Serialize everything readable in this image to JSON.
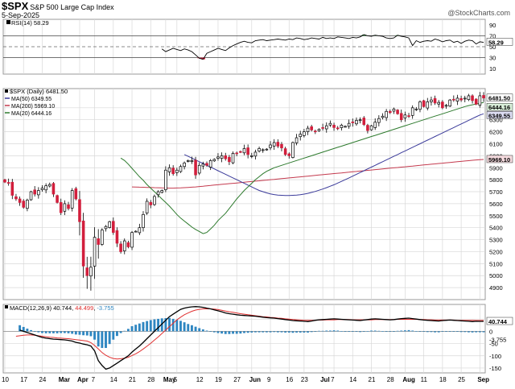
{
  "header": {
    "symbol": "$SPX",
    "name": "S&P 500 Large Cap Index",
    "date": "5-Sep-2025",
    "copyright": "@StockCharts.com"
  },
  "colors": {
    "up": "#ffffff",
    "down": "#d21e3c",
    "wick": "#000000",
    "ma50": "#3a3a9a",
    "ma200": "#c43a4e",
    "ma20": "#2d7a2d",
    "rsi_line": "#000000",
    "rsi_over": "#2e8b3a",
    "rsi_under": "#d21e3c",
    "macd_line": "#000000",
    "signal_line": "#e03030",
    "hist": "#2e86c1",
    "grid": "#d8d8d8"
  },
  "chart_data": [
    {
      "type": "line",
      "name": "rsi_panel",
      "legend": "RSI(14) 58.29",
      "current_value": "58.29",
      "ylim": [
        0,
        100
      ],
      "yticks": [
        10,
        30,
        50,
        70,
        90
      ],
      "levels": [
        30,
        50,
        70
      ],
      "values": [
        46,
        41,
        44,
        47,
        45,
        43,
        46,
        44,
        41,
        35,
        29,
        27,
        38,
        41,
        44,
        47,
        45,
        43,
        48,
        52,
        55,
        58,
        60,
        58,
        57,
        61,
        62,
        63,
        61,
        62,
        63,
        64,
        63,
        62,
        64,
        63,
        66,
        65,
        63,
        64,
        66,
        65,
        64,
        67,
        65,
        66,
        65,
        68,
        67,
        66,
        65,
        67,
        66,
        68,
        72,
        70,
        69,
        71,
        70,
        69,
        66,
        65,
        66,
        71,
        69,
        68,
        66,
        52,
        61,
        58,
        60,
        61,
        60,
        64,
        62,
        59,
        61,
        62,
        58,
        60,
        56,
        60,
        62,
        61,
        55,
        59,
        58
      ]
    },
    {
      "type": "candlestick",
      "name": "price_panel",
      "title_legend": "$SPX (Daily) 6481.50",
      "legend": [
        {
          "label": "MA(50) 6349.55",
          "key": "ma50"
        },
        {
          "label": "MA(200) 5969.10",
          "key": "ma200"
        },
        {
          "label": "MA(20) 6444.16",
          "key": "ma20"
        }
      ],
      "last_labels": {
        "price": "6481.50",
        "ma20": "6444.16",
        "ma50": "6349.55",
        "ma200": "5969.10"
      },
      "ylim": [
        4800,
        6560
      ],
      "yticks": [
        4900,
        5000,
        5100,
        5200,
        5300,
        5400,
        5500,
        5600,
        5700,
        5800,
        5900,
        6000,
        6100,
        6200,
        6300,
        6400
      ],
      "x_labels": [
        {
          "i": 0,
          "text": "10"
        },
        {
          "i": 5,
          "text": "17"
        },
        {
          "i": 10,
          "text": "24"
        },
        {
          "i": 15,
          "text": "Mar"
        },
        {
          "i": 20,
          "text": "Apr"
        },
        {
          "i": 24,
          "text": "7"
        },
        {
          "i": 29,
          "text": "14"
        },
        {
          "i": 34,
          "text": "21"
        },
        {
          "i": 39,
          "text": "28"
        },
        {
          "i": 43,
          "text": "May"
        },
        {
          "i": 46,
          "text": "5"
        },
        {
          "i": 52,
          "text": "12"
        },
        {
          "i": 57,
          "text": "19"
        },
        {
          "i": 62,
          "text": "27"
        },
        {
          "i": 66,
          "text": "Jun"
        },
        {
          "i": 71,
          "text": "9"
        },
        {
          "i": 76,
          "text": "16"
        },
        {
          "i": 80,
          "text": "23"
        },
        {
          "i": 85,
          "text": "Jul"
        },
        {
          "i": 88,
          "text": "7"
        },
        {
          "i": 93,
          "text": "14"
        },
        {
          "i": 98,
          "text": "21"
        },
        {
          "i": 103,
          "text": "28"
        },
        {
          "i": 107,
          "text": "Aug"
        },
        {
          "i": 112,
          "text": "11"
        },
        {
          "i": 117,
          "text": "18"
        },
        {
          "i": 122,
          "text": "25"
        },
        {
          "i": 127,
          "text": "Sep"
        }
      ],
      "closes": [
        5780,
        5770,
        5670,
        5640,
        5610,
        5570,
        5630,
        5700,
        5680,
        5710,
        5730,
        5750,
        5760,
        5680,
        5610,
        5525,
        5600,
        5560,
        5710,
        5640,
        5450,
        5080,
        5000,
        5070,
        5320,
        5260,
        5380,
        5410,
        5450,
        5360,
        5270,
        5200,
        5290,
        5240,
        5360,
        5370,
        5400,
        5510,
        5620,
        5590,
        5660,
        5700,
        5710,
        5880,
        5900,
        5850,
        5880,
        5910,
        5940,
        5960,
        5960,
        5840,
        5920,
        5930,
        5920,
        5960,
        5970,
        5990,
        6000,
        5975,
        5950,
        6020,
        6020,
        6030,
        6060,
        6010,
        6000,
        6030,
        6060,
        6050,
        6055,
        6090,
        6110,
        6080,
        6065,
        6010,
        6000,
        6110,
        6150,
        6180,
        6200,
        6230,
        6215,
        6205,
        6220,
        6230,
        6250,
        6270,
        6235,
        6225,
        6255,
        6245,
        6270,
        6275,
        6295,
        6300,
        6260,
        6210,
        6250,
        6280,
        6310,
        6330,
        6370,
        6360,
        6390,
        6350,
        6300,
        6340,
        6330,
        6400,
        6390,
        6450,
        6410,
        6450,
        6465,
        6440,
        6445,
        6400,
        6420,
        6465,
        6470,
        6480,
        6465,
        6480,
        6500,
        6460,
        6430,
        6500,
        6481.5
      ],
      "ma20": [
        5980,
        5960,
        5930,
        5895,
        5860,
        5825,
        5795,
        5760,
        5730,
        5700,
        5670,
        5640,
        5610,
        5580,
        5545,
        5510,
        5480,
        5455,
        5430,
        5405,
        5385,
        5368,
        5350,
        5360,
        5390,
        5420,
        5460,
        5490,
        5520,
        5560,
        5600,
        5640,
        5675,
        5710,
        5740,
        5770,
        5800,
        5825,
        5850,
        5870,
        5885,
        5900,
        5910,
        5920,
        5930,
        5940,
        5950,
        5960,
        5970,
        5980,
        5990,
        6000,
        6010,
        6020,
        6030,
        6040,
        6050,
        6060,
        6070,
        6080,
        6090,
        6100,
        6110,
        6120,
        6130,
        6140,
        6150,
        6160,
        6170,
        6180,
        6190,
        6200,
        6210,
        6220,
        6230,
        6240,
        6250,
        6260,
        6270,
        6280,
        6290,
        6300,
        6310,
        6320,
        6330,
        6340,
        6350,
        6360,
        6370,
        6380,
        6390,
        6400,
        6410,
        6418,
        6425,
        6432,
        6438,
        6444.16
      ],
      "ma50": [
        6010,
        5995,
        5980,
        5965,
        5950,
        5935,
        5920,
        5905,
        5890,
        5875,
        5860,
        5845,
        5830,
        5815,
        5800,
        5785,
        5770,
        5755,
        5740,
        5725,
        5710,
        5700,
        5690,
        5682,
        5676,
        5672,
        5670,
        5668,
        5668,
        5670,
        5672,
        5675,
        5680,
        5686,
        5694,
        5702,
        5712,
        5722,
        5734,
        5746,
        5758,
        5772,
        5786,
        5800,
        5815,
        5830,
        5845,
        5860,
        5875,
        5890,
        5905,
        5920,
        5935,
        5950,
        5965,
        5980,
        5995,
        6010,
        6025,
        6040,
        6055,
        6070,
        6085,
        6100,
        6115,
        6130,
        6145,
        6160,
        6175,
        6190,
        6205,
        6220,
        6235,
        6250,
        6265,
        6280,
        6295,
        6310,
        6325,
        6340,
        6349.55
      ],
      "ma200": [
        5740,
        5739,
        5738,
        5737,
        5736,
        5735,
        5734,
        5733,
        5732,
        5731,
        5730,
        5730,
        5731,
        5732,
        5734,
        5736,
        5738,
        5740,
        5743,
        5746,
        5749,
        5752,
        5755,
        5758,
        5761,
        5764,
        5767,
        5770,
        5773,
        5776,
        5779,
        5782,
        5785,
        5788,
        5791,
        5794,
        5797,
        5800,
        5803,
        5806,
        5809,
        5812,
        5815,
        5818,
        5821,
        5824,
        5827,
        5830,
        5833,
        5836,
        5839,
        5842,
        5845,
        5848,
        5851,
        5854,
        5857,
        5860,
        5863,
        5866,
        5869,
        5872,
        5875,
        5878,
        5881,
        5884,
        5887,
        5890,
        5893,
        5896,
        5899,
        5902,
        5905,
        5908,
        5911,
        5914,
        5917,
        5920,
        5923,
        5926,
        5929,
        5932,
        5935,
        5938,
        5941,
        5944,
        5947,
        5950,
        5953,
        5956,
        5959,
        5962,
        5965,
        5967,
        5969.1
      ]
    },
    {
      "type": "line",
      "name": "macd_panel",
      "legend": "MACD(12,26,9) 40.744, 44.499, -3.755",
      "legend_parts": {
        "label": "MACD(12,26,9)",
        "macd": "40.744",
        "signal": "44.499",
        "hist": "-3.755"
      },
      "last_labels": {
        "macd": "40.744",
        "hist": "-3.755"
      },
      "ylim": [
        -170,
        110
      ],
      "yticks": [
        50,
        0,
        -50,
        -100,
        -150
      ],
      "macd": [
        5,
        0,
        -5,
        -10,
        -15,
        -20,
        -25,
        -28,
        -30,
        -32,
        -33,
        -34,
        -35,
        -37,
        -40,
        -45,
        -48,
        -52,
        -55,
        -60,
        -80,
        -120,
        -140,
        -155,
        -150,
        -140,
        -130,
        -120,
        -110,
        -100,
        -85,
        -72,
        -60,
        -45,
        -30,
        -15,
        0,
        15,
        30,
        45,
        60,
        70,
        80,
        90,
        95,
        98,
        100,
        101,
        100,
        98,
        95,
        92,
        88,
        84,
        80,
        75,
        72,
        70,
        68,
        66,
        65,
        64,
        63,
        62,
        60,
        58,
        56,
        55,
        54,
        52,
        50,
        48,
        46,
        44,
        43,
        42,
        41,
        40,
        42,
        45,
        47,
        48,
        49,
        50,
        51,
        50,
        49,
        48,
        47,
        46,
        45,
        44,
        46,
        48,
        50,
        51,
        50,
        49,
        48,
        47,
        48,
        50,
        52,
        53,
        54,
        52,
        50,
        48,
        46,
        45,
        44,
        43,
        42,
        44,
        45,
        46,
        45,
        44,
        43,
        42,
        41,
        40,
        41,
        40.7,
        40.74
      ],
      "signal": [
        -20,
        -18,
        -16,
        -15,
        -15,
        -16,
        -18,
        -20,
        -22,
        -24,
        -25,
        -27,
        -28,
        -29,
        -30,
        -32,
        -34,
        -36,
        -38,
        -40,
        -46,
        -58,
        -72,
        -87,
        -98,
        -106,
        -111,
        -113,
        -112,
        -110,
        -106,
        -99,
        -92,
        -83,
        -72,
        -61,
        -49,
        -36,
        -23,
        -9,
        5,
        19,
        33,
        47,
        58,
        68,
        75,
        82,
        87,
        90,
        92,
        92,
        92,
        91,
        89,
        86,
        83,
        80,
        78,
        75,
        72,
        70,
        68,
        66,
        64,
        62,
        60,
        59,
        57,
        56,
        54,
        53,
        51,
        50,
        48,
        47,
        46,
        45,
        45,
        45,
        45,
        46,
        46,
        47,
        47,
        47,
        48,
        48,
        48,
        48,
        47,
        47,
        47,
        47,
        47,
        47,
        48,
        48,
        48,
        48,
        48,
        48,
        49,
        49,
        49,
        49,
        49,
        49,
        48,
        48,
        47,
        47,
        46,
        46,
        46,
        46,
        46,
        46,
        45,
        45,
        45,
        44.8,
        44.7,
        44.6,
        44.5,
        44.499
      ],
      "hist": [
        25,
        18,
        11,
        5,
        0,
        -4,
        -7,
        -8,
        -8,
        -8,
        -8,
        -7,
        -7,
        -8,
        -10,
        -13,
        -14,
        -16,
        -17,
        -20,
        -34,
        -62,
        -68,
        -68,
        -52,
        -34,
        -19,
        -7,
        2,
        10,
        21,
        27,
        32,
        38,
        42,
        46,
        49,
        51,
        53,
        54,
        55,
        51,
        47,
        43,
        37,
        30,
        25,
        19,
        13,
        8,
        3,
        0,
        -4,
        -7,
        -9,
        -11,
        -11,
        -10,
        -10,
        -9,
        -7,
        -6,
        -5,
        -4,
        -4,
        -4,
        -4,
        -4,
        -3,
        -4,
        -4,
        -5,
        -5,
        -6,
        -5,
        -5,
        -5,
        -5,
        -3,
        0,
        2,
        2,
        3,
        3,
        4,
        3,
        1,
        0,
        -1,
        -2,
        -2,
        -3,
        -1,
        1,
        3,
        3,
        2,
        1,
        0,
        -1,
        0,
        2,
        3,
        4,
        5,
        3,
        1,
        -1,
        -2,
        -3,
        -3,
        -4,
        -4,
        -2,
        -1,
        0,
        -1,
        -2,
        -3,
        -3,
        -4,
        -4.5,
        -3.9,
        -3.8,
        -3.755
      ]
    }
  ]
}
